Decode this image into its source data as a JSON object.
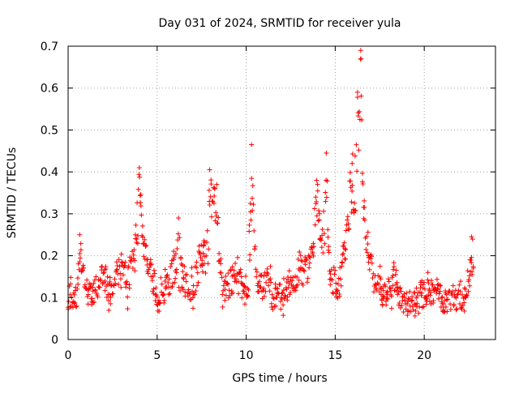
{
  "chart_data": {
    "type": "scatter",
    "title": "Day 031 of 2024, SRMTID for receiver yula",
    "xlabel": "GPS time / hours",
    "ylabel": "SRMTID / TECUs",
    "xlim": [
      0,
      24
    ],
    "ylim": [
      0,
      0.7
    ],
    "x_ticks": [
      "0",
      "5",
      "10",
      "15",
      "20"
    ],
    "y_ticks": [
      "0",
      "0.1",
      "0.2",
      "0.3",
      "0.4",
      "0.5",
      "0.6",
      "0.7"
    ],
    "grid": true,
    "marker": "plus",
    "marker_color": "#ff0000",
    "trend": [
      [
        0.0,
        0.11
      ],
      [
        0.5,
        0.1
      ],
      [
        0.7,
        0.18
      ],
      [
        1.0,
        0.12
      ],
      [
        1.3,
        0.1
      ],
      [
        1.6,
        0.13
      ],
      [
        2.0,
        0.16
      ],
      [
        2.3,
        0.11
      ],
      [
        2.7,
        0.13
      ],
      [
        3.0,
        0.19
      ],
      [
        3.3,
        0.12
      ],
      [
        3.6,
        0.2
      ],
      [
        3.9,
        0.25
      ],
      [
        4.1,
        0.3
      ],
      [
        4.3,
        0.2
      ],
      [
        4.6,
        0.16
      ],
      [
        5.0,
        0.11
      ],
      [
        5.3,
        0.12
      ],
      [
        5.6,
        0.13
      ],
      [
        6.0,
        0.17
      ],
      [
        6.3,
        0.14
      ],
      [
        6.6,
        0.15
      ],
      [
        6.9,
        0.12
      ],
      [
        7.2,
        0.15
      ],
      [
        7.5,
        0.2
      ],
      [
        7.8,
        0.19
      ],
      [
        8.0,
        0.28
      ],
      [
        8.2,
        0.33
      ],
      [
        8.4,
        0.25
      ],
      [
        8.6,
        0.14
      ],
      [
        8.9,
        0.12
      ],
      [
        9.2,
        0.14
      ],
      [
        9.5,
        0.17
      ],
      [
        9.8,
        0.12
      ],
      [
        10.0,
        0.09
      ],
      [
        10.2,
        0.16
      ],
      [
        10.4,
        0.28
      ],
      [
        10.6,
        0.14
      ],
      [
        10.9,
        0.12
      ],
      [
        11.2,
        0.15
      ],
      [
        11.5,
        0.1
      ],
      [
        11.8,
        0.1
      ],
      [
        12.1,
        0.11
      ],
      [
        12.4,
        0.13
      ],
      [
        12.7,
        0.11
      ],
      [
        13.0,
        0.18
      ],
      [
        13.3,
        0.16
      ],
      [
        13.6,
        0.19
      ],
      [
        13.9,
        0.22
      ],
      [
        14.1,
        0.27
      ],
      [
        14.4,
        0.24
      ],
      [
        14.6,
        0.15
      ],
      [
        14.9,
        0.14
      ],
      [
        15.2,
        0.13
      ],
      [
        15.5,
        0.2
      ],
      [
        15.8,
        0.32
      ],
      [
        16.1,
        0.3
      ],
      [
        16.3,
        0.45
      ],
      [
        16.5,
        0.33
      ],
      [
        16.8,
        0.22
      ],
      [
        17.1,
        0.15
      ],
      [
        17.4,
        0.14
      ],
      [
        17.7,
        0.1
      ],
      [
        18.0,
        0.12
      ],
      [
        18.3,
        0.15
      ],
      [
        18.6,
        0.11
      ],
      [
        18.9,
        0.09
      ],
      [
        19.2,
        0.09
      ],
      [
        19.5,
        0.08
      ],
      [
        19.8,
        0.1
      ],
      [
        20.1,
        0.11
      ],
      [
        20.4,
        0.12
      ],
      [
        20.7,
        0.11
      ],
      [
        21.0,
        0.1
      ],
      [
        21.3,
        0.09
      ],
      [
        21.6,
        0.1
      ],
      [
        21.9,
        0.1
      ],
      [
        22.2,
        0.11
      ],
      [
        22.5,
        0.15
      ],
      [
        22.7,
        0.18
      ]
    ],
    "peaks": [
      [
        0.65,
        0.25
      ],
      [
        4.0,
        0.41
      ],
      [
        6.2,
        0.29
      ],
      [
        7.95,
        0.405
      ],
      [
        8.35,
        0.37
      ],
      [
        10.3,
        0.465
      ],
      [
        13.95,
        0.38
      ],
      [
        14.5,
        0.445
      ],
      [
        15.95,
        0.42
      ],
      [
        16.25,
        0.59
      ],
      [
        16.45,
        0.67
      ],
      [
        22.65,
        0.245
      ]
    ]
  }
}
